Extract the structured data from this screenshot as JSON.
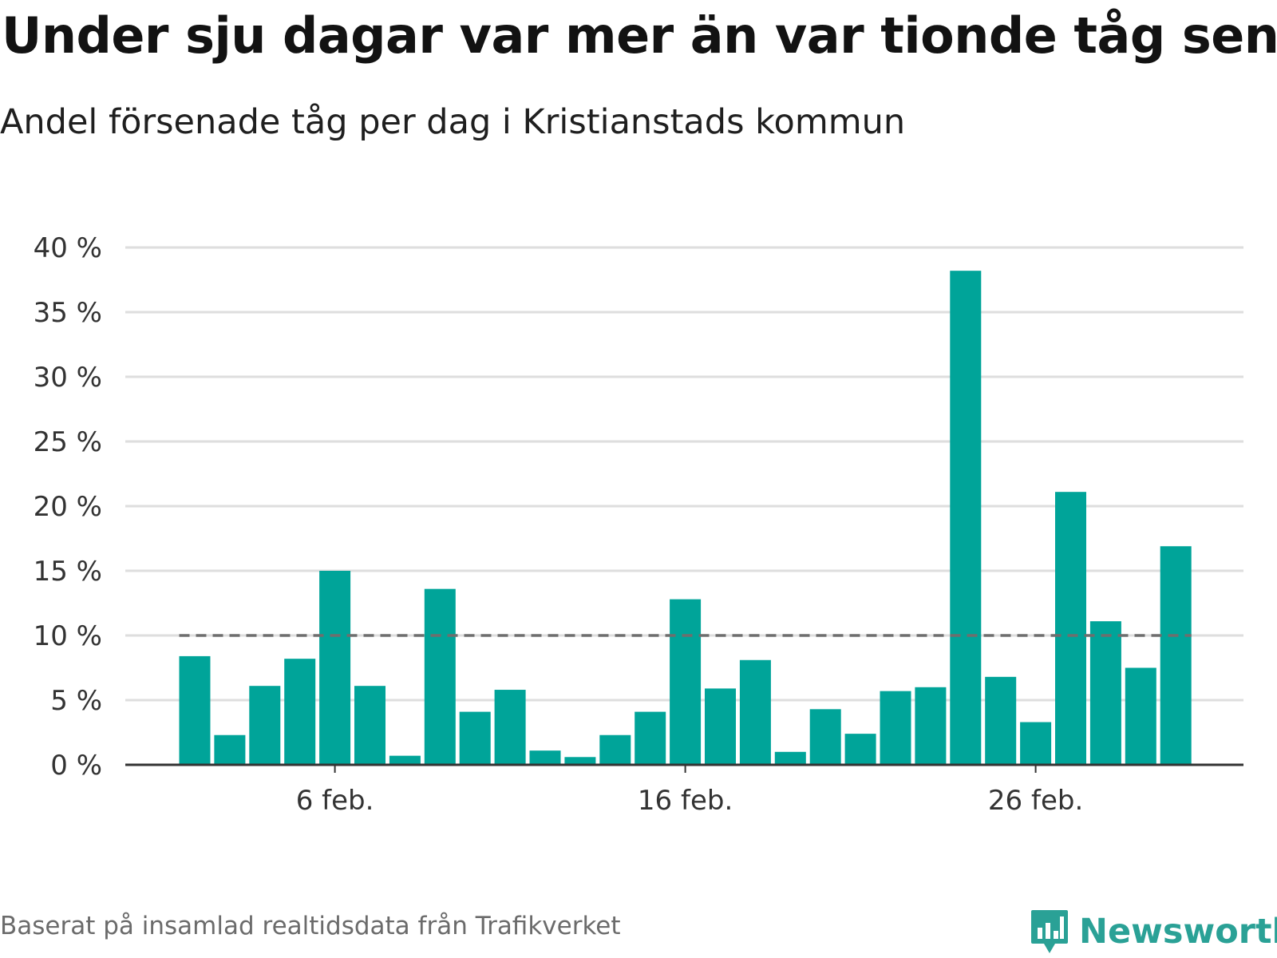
{
  "header": {
    "title": "Under sju dagar var mer än var tionde tåg sent",
    "subtitle": "Andel försenade tåg per dag i Kristianstads kommun"
  },
  "footer": {
    "source": "Baserat på insamlad realtidsdata från Trafikverket",
    "brand": "Newsworthy",
    "brand_icon": "newsworthy-logo-icon"
  },
  "colors": {
    "bar": "#00a499",
    "gridline": "#dedede",
    "axis": "#333333",
    "reference_line": "#6e6e6e",
    "brand": "#2aa196"
  },
  "chart_data": {
    "type": "bar",
    "title": "Under sju dagar var mer än var tionde tåg sent",
    "subtitle": "Andel försenade tåg per dag i Kristianstads kommun",
    "xlabel": "",
    "ylabel": "",
    "x": [
      "2 feb.",
      "3 feb.",
      "4 feb.",
      "5 feb.",
      "6 feb.",
      "7 feb.",
      "8 feb.",
      "9 feb.",
      "10 feb.",
      "11 feb.",
      "12 feb.",
      "13 feb.",
      "14 feb.",
      "15 feb.",
      "16 feb.",
      "17 feb.",
      "18 feb.",
      "19 feb.",
      "20 feb.",
      "21 feb.",
      "22 feb.",
      "23 feb.",
      "24 feb.",
      "25 feb.",
      "26 feb.",
      "27 feb.",
      "28 feb.",
      "29 feb.",
      "1 mar."
    ],
    "values": [
      8.4,
      2.3,
      6.1,
      8.2,
      15.0,
      6.1,
      0.7,
      13.6,
      4.1,
      5.8,
      1.1,
      0.6,
      2.3,
      4.1,
      12.8,
      5.9,
      8.1,
      1.0,
      4.3,
      2.4,
      5.7,
      6.0,
      38.2,
      6.8,
      3.3,
      21.1,
      11.1,
      7.5,
      16.9
    ],
    "y_ticks": [
      0,
      5,
      10,
      15,
      20,
      25,
      30,
      35,
      40
    ],
    "y_tick_labels": [
      "0 %",
      "5 %",
      "10 %",
      "15 %",
      "20 %",
      "25 %",
      "30 %",
      "35 %",
      "40 %"
    ],
    "x_ticks": [
      {
        "index": 4,
        "label": "6 feb."
      },
      {
        "index": 14,
        "label": "16 feb."
      },
      {
        "index": 24,
        "label": "26 feb."
      }
    ],
    "ylim": [
      0,
      40
    ],
    "reference_line": 10,
    "grid": true
  }
}
